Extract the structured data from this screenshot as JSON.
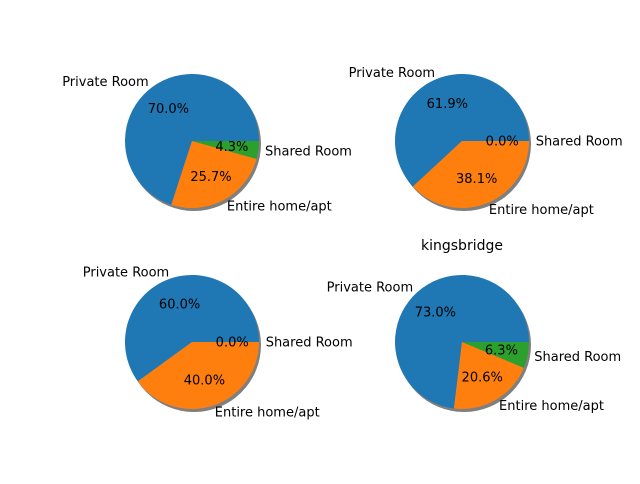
{
  "chart_data": [
    {
      "type": "pie",
      "title": "",
      "categories": [
        "Private Room",
        "Entire home/apt",
        "Shared Room"
      ],
      "values": [
        70.0,
        25.7,
        4.3
      ],
      "autopct": [
        "70.0%",
        "25.7%",
        "4.3%"
      ],
      "colors": [
        "#1f77b4",
        "#ff7f0e",
        "#2ca02c"
      ],
      "shadow": true
    },
    {
      "type": "pie",
      "title": "",
      "categories": [
        "Private Room",
        "Entire home/apt",
        "Shared Room"
      ],
      "values": [
        61.9,
        38.1,
        0.0
      ],
      "autopct": [
        "61.9%",
        "38.1%",
        "0.0%"
      ],
      "colors": [
        "#1f77b4",
        "#ff7f0e",
        "#2ca02c"
      ],
      "shadow": true
    },
    {
      "type": "pie",
      "title": "",
      "categories": [
        "Private Room",
        "Entire home/apt",
        "Shared Room"
      ],
      "values": [
        60.0,
        40.0,
        0.0
      ],
      "autopct": [
        "60.0%",
        "40.0%",
        "0.0%"
      ],
      "colors": [
        "#1f77b4",
        "#ff7f0e",
        "#2ca02c"
      ],
      "shadow": true
    },
    {
      "type": "pie",
      "title": "kingsbridge",
      "categories": [
        "Private Room",
        "Entire home/apt",
        "Shared Room"
      ],
      "values": [
        73.0,
        20.6,
        6.3
      ],
      "autopct": [
        "73.0%",
        "20.6%",
        "6.3%"
      ],
      "colors": [
        "#1f77b4",
        "#ff7f0e",
        "#2ca02c"
      ],
      "shadow": true
    }
  ]
}
